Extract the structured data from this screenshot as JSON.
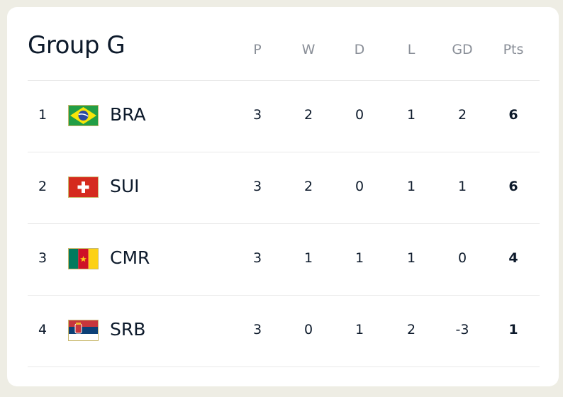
{
  "title": "Group G",
  "headers": [
    "P",
    "W",
    "D",
    "L",
    "GD",
    "Pts"
  ],
  "rows": [
    {
      "rank": 1,
      "team": "BRA",
      "stats": [
        3,
        2,
        0,
        1,
        2,
        6
      ]
    },
    {
      "rank": 2,
      "team": "SUI",
      "stats": [
        3,
        2,
        0,
        1,
        1,
        6
      ]
    },
    {
      "rank": 3,
      "team": "CMR",
      "stats": [
        3,
        1,
        1,
        1,
        0,
        4
      ]
    },
    {
      "rank": 4,
      "team": "SRB",
      "stats": [
        3,
        0,
        1,
        2,
        -3,
        1
      ]
    }
  ]
}
